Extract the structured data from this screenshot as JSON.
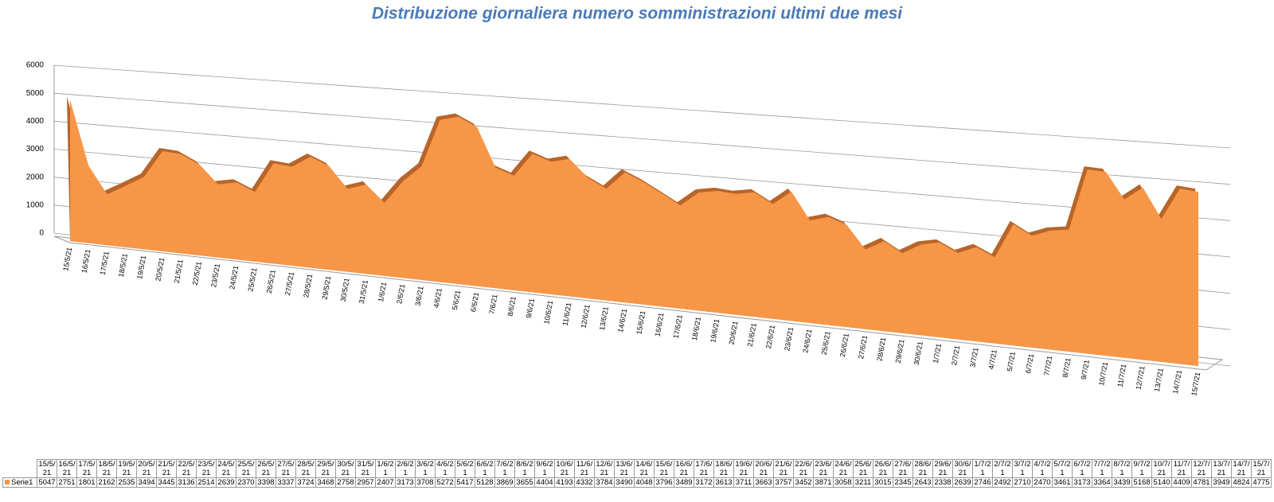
{
  "chart_data": {
    "type": "area3d",
    "title": "Distribuzione giornaliera numero somministrazioni ultimi due mesi",
    "categories": [
      "15/5/21",
      "16/5/21",
      "17/5/21",
      "18/5/21",
      "19/5/21",
      "20/5/21",
      "21/5/21",
      "22/5/21",
      "23/5/21",
      "24/5/21",
      "25/5/21",
      "26/5/21",
      "27/5/21",
      "28/5/21",
      "29/5/21",
      "30/5/21",
      "31/5/21",
      "1/6/21",
      "2/6/21",
      "3/6/21",
      "4/6/21",
      "5/6/21",
      "6/6/21",
      "7/6/21",
      "8/6/21",
      "9/6/21",
      "10/6/21",
      "11/6/21",
      "12/6/21",
      "13/6/21",
      "14/6/21",
      "15/6/21",
      "16/6/21",
      "17/6/21",
      "18/6/21",
      "19/6/21",
      "20/6/21",
      "21/6/21",
      "22/6/21",
      "23/6/21",
      "24/6/21",
      "25/6/21",
      "26/6/21",
      "27/6/21",
      "28/6/21",
      "29/6/21",
      "30/6/21",
      "1/7/21",
      "2/7/21",
      "3/7/21",
      "4/7/21",
      "5/7/21",
      "6/7/21",
      "7/7/21",
      "8/7/21",
      "9/7/21",
      "10/7/21",
      "11/7/21",
      "12/7/21",
      "13/7/21",
      "14/7/21",
      "15/7/21"
    ],
    "series": [
      {
        "name": "Serie1",
        "color": "#f79646",
        "values": [
          5047,
          2751,
          1801,
          2162,
          2535,
          3494,
          3445,
          3136,
          2514,
          2639,
          2370,
          3398,
          3337,
          3724,
          3468,
          2758,
          2957,
          2407,
          3173,
          3708,
          5272,
          5417,
          5128,
          3869,
          3655,
          4404,
          4193,
          4332,
          3784,
          3490,
          4048,
          3796,
          3489,
          3172,
          3613,
          3711,
          3663,
          3757,
          3452,
          3871,
          3058,
          3211,
          3015,
          2345,
          2643,
          2338,
          2639,
          2746,
          2492,
          2710,
          2470,
          3461,
          3173,
          3364,
          3439,
          5168,
          5140,
          4409,
          4781,
          3949,
          4824,
          4775
        ]
      }
    ],
    "ylim": [
      0,
      6000
    ],
    "yticks": [
      0,
      1000,
      2000,
      3000,
      4000,
      5000,
      6000
    ],
    "grid": true
  }
}
